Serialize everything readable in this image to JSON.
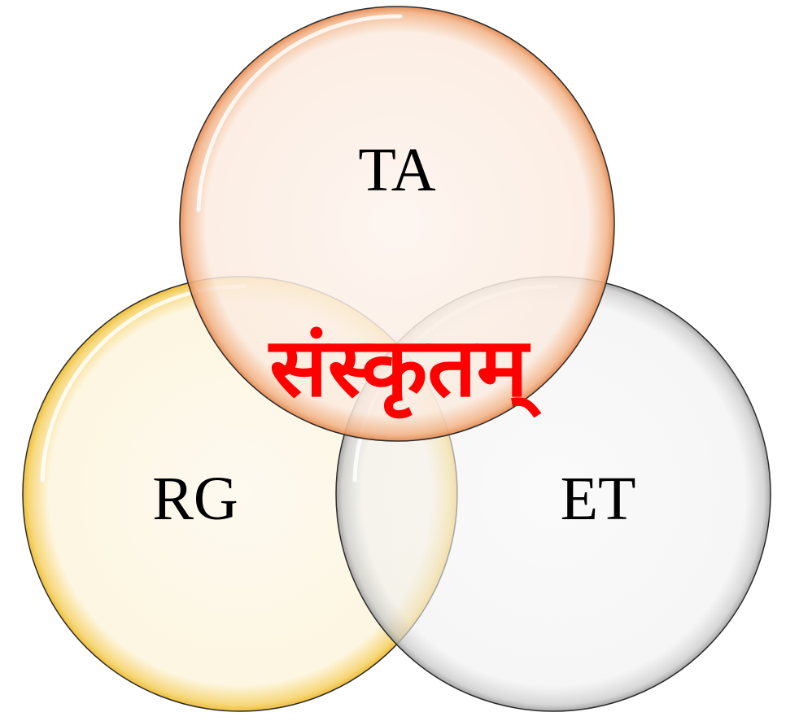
{
  "diagram": {
    "type": "venn",
    "center_label": "संस्कृतम्",
    "center_color": "#ff0000",
    "sets": [
      {
        "id": "ta",
        "label": "TA",
        "fill": "#fbece0",
        "edge": "#e8955f"
      },
      {
        "id": "rg",
        "label": "RG",
        "fill": "#fdf6e2",
        "edge": "#f0c84a"
      },
      {
        "id": "et",
        "label": "ET",
        "fill": "#f2f2f2",
        "edge": "#a9a9a9"
      }
    ]
  }
}
